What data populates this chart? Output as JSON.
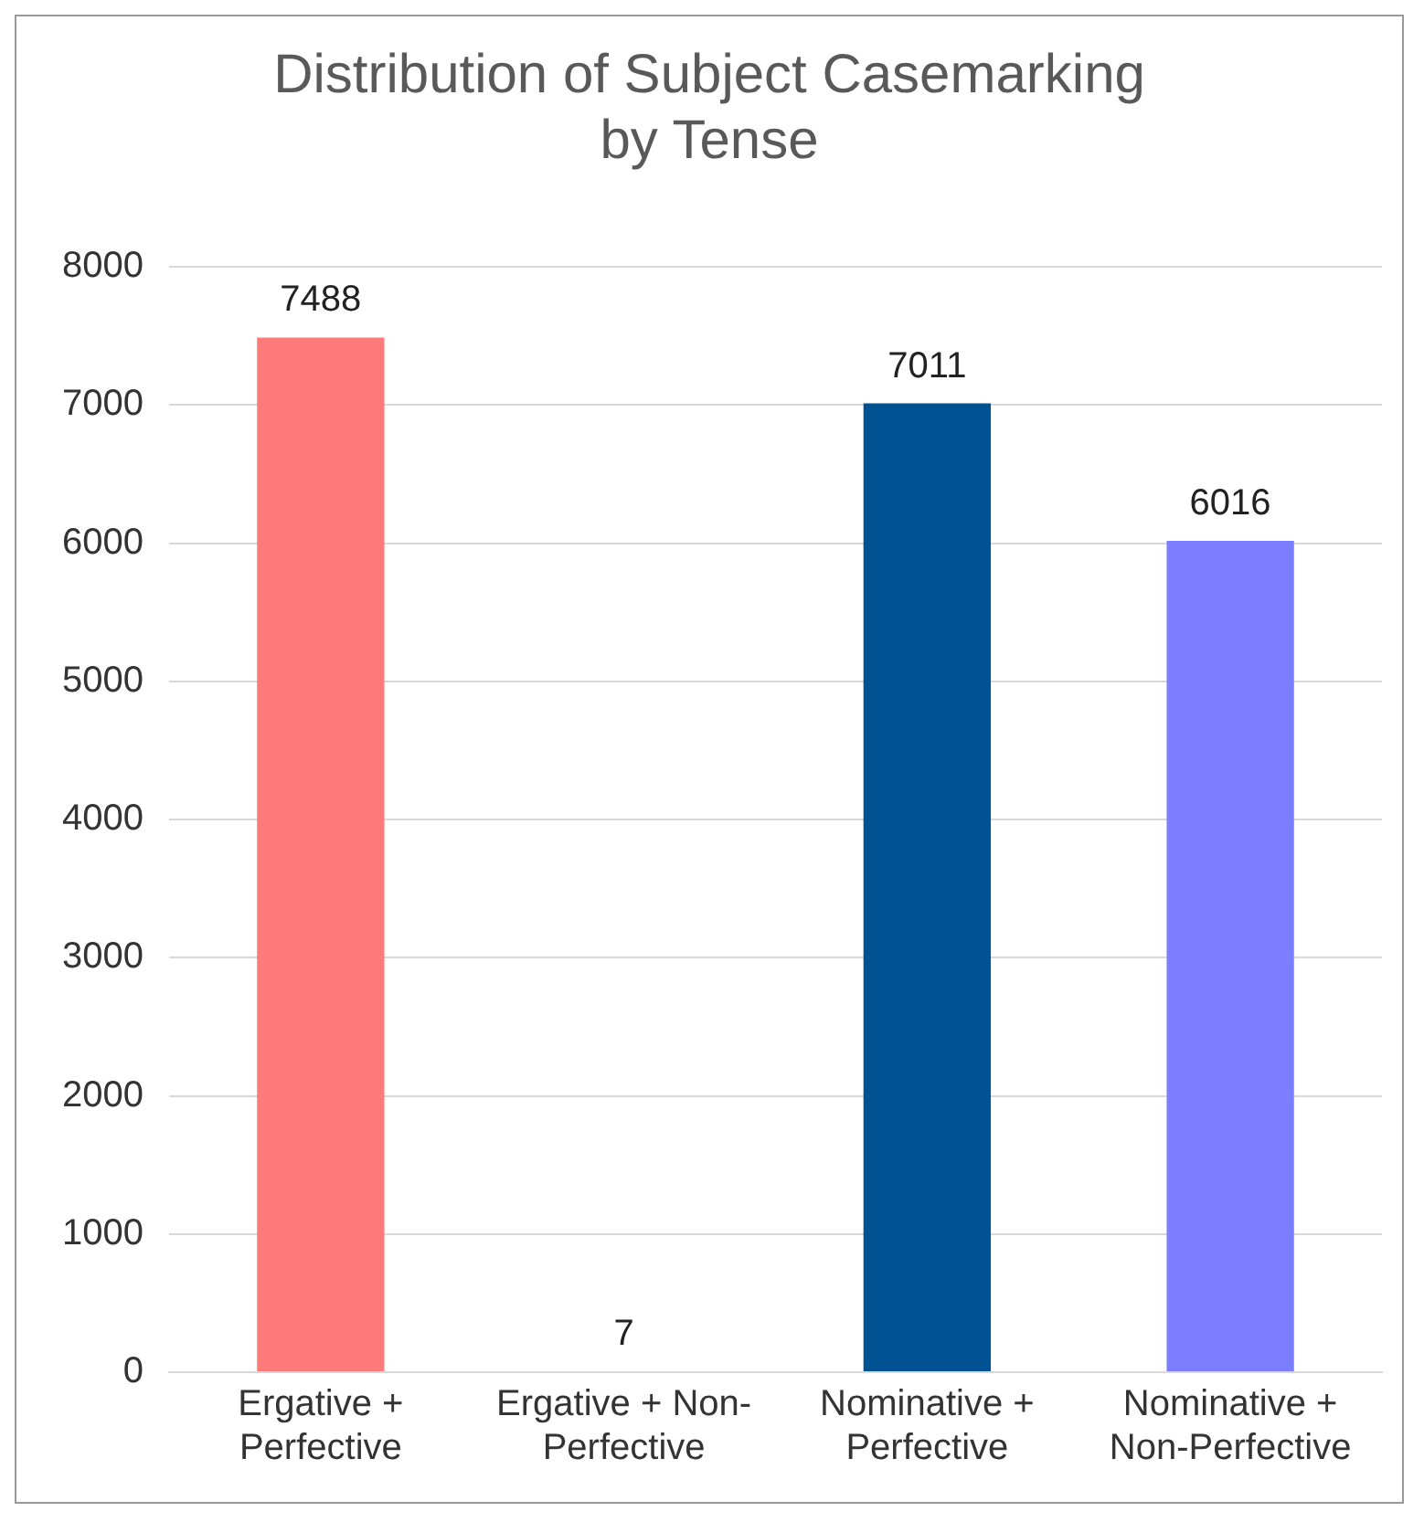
{
  "chart_data": {
    "type": "bar",
    "title": "Distribution of Subject Casemarking by Tense",
    "categories": [
      "Ergative + Perfective",
      "Ergative + Non-Perfective",
      "Nominative + Perfective",
      "Nominative + Non-Perfective"
    ],
    "values": [
      7488,
      7,
      7011,
      6016
    ],
    "colors": [
      "#ff7b7b",
      "#ff7b7b",
      "#005293",
      "#7b7fff"
    ],
    "ylim": [
      0,
      8000
    ],
    "yticks": [
      0,
      1000,
      2000,
      3000,
      4000,
      5000,
      6000,
      7000,
      8000
    ],
    "grid": "y",
    "legend": false,
    "data_labels": true
  }
}
